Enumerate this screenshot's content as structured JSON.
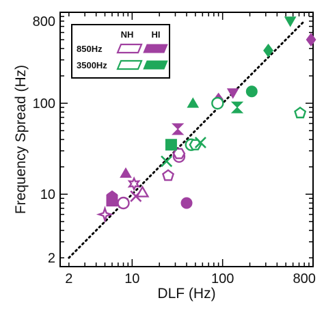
{
  "chart_data": {
    "type": "scatter",
    "xlabel": "DLF (Hz)",
    "ylabel": "Frequency Spread (Hz)",
    "xscale": "log",
    "yscale": "log",
    "xlim": [
      1.6,
      1000
    ],
    "ylim": [
      1.6,
      1000
    ],
    "xticks": [
      2,
      10,
      100,
      800
    ],
    "yticks": [
      2,
      10,
      100,
      800
    ],
    "xtick_labels": [
      "2",
      "10",
      "100",
      "800"
    ],
    "ytick_labels": [
      "2",
      "10",
      "100",
      "800"
    ],
    "grid": false,
    "reference_line": {
      "style": "dotted",
      "from": [
        2,
        2
      ],
      "to": [
        800,
        800
      ]
    },
    "legend": {
      "placement": "top-left",
      "column_headers": [
        "NH",
        "HI"
      ],
      "rows": [
        {
          "label": "850Hz",
          "color": "#a040a0"
        },
        {
          "label": "3500Hz",
          "color": "#1fa85a"
        }
      ]
    },
    "colors": {
      "850Hz": "#a040a0",
      "3500Hz": "#1fa85a"
    },
    "series": [
      {
        "group": "NH",
        "frequency": "850Hz",
        "color": "#a040a0",
        "filled": false,
        "points": [
          {
            "x": 5,
            "y": 6,
            "marker": "star4"
          },
          {
            "x": 8,
            "y": 8,
            "marker": "circle"
          },
          {
            "x": 10.5,
            "y": 13,
            "marker": "star6"
          },
          {
            "x": 11,
            "y": 9.5,
            "marker": "x"
          },
          {
            "x": 13,
            "y": 10.5,
            "marker": "triangle"
          },
          {
            "x": 25,
            "y": 16,
            "marker": "pentagon"
          },
          {
            "x": 33,
            "y": 26,
            "marker": "circle"
          },
          {
            "x": 33,
            "y": 28,
            "marker": "hexagon"
          }
        ]
      },
      {
        "group": "HI",
        "frequency": "850Hz",
        "color": "#a040a0",
        "filled": true,
        "points": [
          {
            "x": 6,
            "y": 8.5,
            "marker": "square"
          },
          {
            "x": 6,
            "y": 9.5,
            "marker": "pentagon"
          },
          {
            "x": 8.5,
            "y": 17,
            "marker": "triangle"
          },
          {
            "x": 32,
            "y": 52,
            "marker": "hourglass"
          },
          {
            "x": 40,
            "y": 8,
            "marker": "circle"
          },
          {
            "x": 90,
            "y": 110,
            "marker": "diamond"
          },
          {
            "x": 130,
            "y": 130,
            "marker": "triangle-down"
          },
          {
            "x": 950,
            "y": 500,
            "marker": "diamond"
          }
        ]
      },
      {
        "group": "NH",
        "frequency": "3500Hz",
        "color": "#1fa85a",
        "filled": false,
        "points": [
          {
            "x": 24,
            "y": 23,
            "marker": "x"
          },
          {
            "x": 45,
            "y": 35,
            "marker": "circle"
          },
          {
            "x": 50,
            "y": 35,
            "marker": "hexagon"
          },
          {
            "x": 57,
            "y": 37,
            "marker": "x"
          },
          {
            "x": 88,
            "y": 100,
            "marker": "circle"
          },
          {
            "x": 720,
            "y": 78,
            "marker": "pentagon"
          }
        ]
      },
      {
        "group": "HI",
        "frequency": "3500Hz",
        "color": "#1fa85a",
        "filled": true,
        "points": [
          {
            "x": 27,
            "y": 35,
            "marker": "square"
          },
          {
            "x": 47,
            "y": 100,
            "marker": "triangle"
          },
          {
            "x": 145,
            "y": 90,
            "marker": "hourglass"
          },
          {
            "x": 210,
            "y": 135,
            "marker": "circle"
          },
          {
            "x": 320,
            "y": 380,
            "marker": "diamond"
          },
          {
            "x": 560,
            "y": 800,
            "marker": "triangle-down"
          }
        ]
      }
    ]
  }
}
